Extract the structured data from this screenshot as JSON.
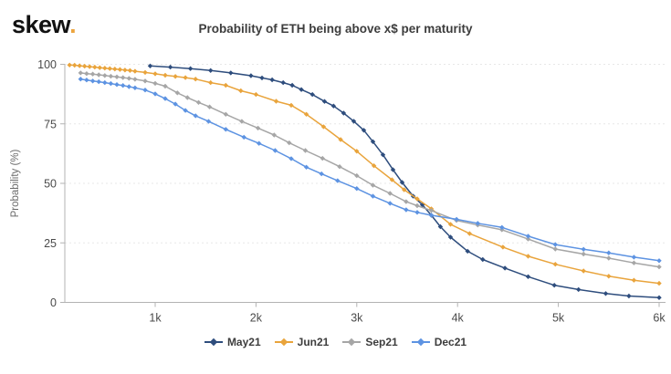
{
  "logo": {
    "text": "skew",
    "dot": "."
  },
  "title": "Probability of ETH being above x$ per maturity",
  "chart_data": {
    "type": "line",
    "title": "Probability of ETH being above x$ per maturity",
    "xlabel": "",
    "ylabel": "Probability (%)",
    "x_unit": "USD strike (thousands)",
    "xlim": [
      0.1,
      6.1
    ],
    "ylim": [
      0,
      100
    ],
    "x_ticks": [
      "1k",
      "2k",
      "3k",
      "4k",
      "5k",
      "6k"
    ],
    "x_tick_values": [
      1,
      2,
      3,
      4,
      5,
      6
    ],
    "y_ticks": [
      0,
      25,
      50,
      75,
      100
    ],
    "grid": "horizontal-dashed",
    "legend_position": "bottom-center",
    "axis_color": "#b3b3b3",
    "grid_color": "#e7e7e7",
    "series": [
      {
        "name": "May21",
        "color": "#2e4d7d",
        "points": [
          [
            0.95,
            99.3
          ],
          [
            1.15,
            98.8
          ],
          [
            1.35,
            98.2
          ],
          [
            1.55,
            97.4
          ],
          [
            1.75,
            96.4
          ],
          [
            1.95,
            95.2
          ],
          [
            2.06,
            94.3
          ],
          [
            2.16,
            93.5
          ],
          [
            2.27,
            92.3
          ],
          [
            2.36,
            91.2
          ],
          [
            2.45,
            89.4
          ],
          [
            2.56,
            87.3
          ],
          [
            2.68,
            84.4
          ],
          [
            2.77,
            82.5
          ],
          [
            2.87,
            79.5
          ],
          [
            2.97,
            76.1
          ],
          [
            3.07,
            72.3
          ],
          [
            3.16,
            67.5
          ],
          [
            3.26,
            62.0
          ],
          [
            3.36,
            55.7
          ],
          [
            3.45,
            50.4
          ],
          [
            3.56,
            44.6
          ],
          [
            3.65,
            41.0
          ],
          [
            3.74,
            36.6
          ],
          [
            3.83,
            31.8
          ],
          [
            3.93,
            27.4
          ],
          [
            4.1,
            21.5
          ],
          [
            4.25,
            18.0
          ],
          [
            4.47,
            14.4
          ],
          [
            4.7,
            10.8
          ],
          [
            4.96,
            7.2
          ],
          [
            5.2,
            5.4
          ],
          [
            5.47,
            3.7
          ],
          [
            5.7,
            2.7
          ],
          [
            6.0,
            2.0
          ]
        ]
      },
      {
        "name": "Jun21",
        "color": "#e9a43c",
        "points": [
          [
            0.15,
            99.7
          ],
          [
            0.2,
            99.6
          ],
          [
            0.25,
            99.4
          ],
          [
            0.3,
            99.2
          ],
          [
            0.35,
            99.0
          ],
          [
            0.4,
            98.8
          ],
          [
            0.45,
            98.6
          ],
          [
            0.5,
            98.4
          ],
          [
            0.55,
            98.2
          ],
          [
            0.6,
            98.0
          ],
          [
            0.65,
            97.8
          ],
          [
            0.7,
            97.6
          ],
          [
            0.75,
            97.4
          ],
          [
            0.8,
            97.1
          ],
          [
            0.9,
            96.6
          ],
          [
            1.0,
            96.0
          ],
          [
            1.1,
            95.4
          ],
          [
            1.2,
            94.9
          ],
          [
            1.3,
            94.4
          ],
          [
            1.4,
            93.8
          ],
          [
            1.55,
            92.3
          ],
          [
            1.7,
            91.2
          ],
          [
            1.85,
            88.9
          ],
          [
            2.0,
            87.3
          ],
          [
            2.2,
            84.5
          ],
          [
            2.35,
            82.8
          ],
          [
            2.5,
            79.0
          ],
          [
            2.67,
            73.8
          ],
          [
            2.84,
            68.4
          ],
          [
            3.0,
            63.5
          ],
          [
            3.17,
            57.4
          ],
          [
            3.35,
            51.5
          ],
          [
            3.47,
            47.3
          ],
          [
            3.6,
            43.5
          ],
          [
            3.74,
            39.3
          ],
          [
            3.93,
            32.8
          ],
          [
            4.12,
            28.9
          ],
          [
            4.45,
            23.2
          ],
          [
            4.7,
            19.4
          ],
          [
            4.97,
            16.0
          ],
          [
            5.25,
            13.2
          ],
          [
            5.5,
            11.0
          ],
          [
            5.75,
            9.3
          ],
          [
            6.0,
            8.0
          ]
        ]
      },
      {
        "name": "Sep21",
        "color": "#a6a6a6",
        "points": [
          [
            0.26,
            96.4
          ],
          [
            0.32,
            96.1
          ],
          [
            0.38,
            95.9
          ],
          [
            0.44,
            95.6
          ],
          [
            0.5,
            95.3
          ],
          [
            0.56,
            95.0
          ],
          [
            0.62,
            94.7
          ],
          [
            0.68,
            94.4
          ],
          [
            0.74,
            94.1
          ],
          [
            0.8,
            93.7
          ],
          [
            0.9,
            93.0
          ],
          [
            1.0,
            92.0
          ],
          [
            1.1,
            90.8
          ],
          [
            1.22,
            88.0
          ],
          [
            1.32,
            86.0
          ],
          [
            1.43,
            84.0
          ],
          [
            1.54,
            82.1
          ],
          [
            1.7,
            79.0
          ],
          [
            1.86,
            76.0
          ],
          [
            2.02,
            73.2
          ],
          [
            2.18,
            70.3
          ],
          [
            2.33,
            67.0
          ],
          [
            2.49,
            63.8
          ],
          [
            2.66,
            60.5
          ],
          [
            2.83,
            57.0
          ],
          [
            3.0,
            53.2
          ],
          [
            3.16,
            49.2
          ],
          [
            3.33,
            45.8
          ],
          [
            3.49,
            42.3
          ],
          [
            3.6,
            40.6
          ],
          [
            3.74,
            38.6
          ],
          [
            3.99,
            34.4
          ],
          [
            4.2,
            32.5
          ],
          [
            4.44,
            30.5
          ],
          [
            4.7,
            26.6
          ],
          [
            4.97,
            22.4
          ],
          [
            5.25,
            20.3
          ],
          [
            5.5,
            18.6
          ],
          [
            5.75,
            16.6
          ],
          [
            6.0,
            14.9
          ]
        ]
      },
      {
        "name": "Dec21",
        "color": "#5d93e2",
        "points": [
          [
            0.26,
            93.8
          ],
          [
            0.32,
            93.4
          ],
          [
            0.38,
            93.0
          ],
          [
            0.44,
            92.7
          ],
          [
            0.5,
            92.3
          ],
          [
            0.56,
            91.9
          ],
          [
            0.62,
            91.5
          ],
          [
            0.68,
            91.1
          ],
          [
            0.74,
            90.6
          ],
          [
            0.8,
            90.1
          ],
          [
            0.9,
            89.2
          ],
          [
            1.0,
            87.6
          ],
          [
            1.1,
            85.6
          ],
          [
            1.2,
            83.3
          ],
          [
            1.3,
            80.6
          ],
          [
            1.4,
            78.4
          ],
          [
            1.53,
            76.0
          ],
          [
            1.7,
            72.7
          ],
          [
            1.88,
            69.4
          ],
          [
            2.03,
            66.8
          ],
          [
            2.19,
            63.8
          ],
          [
            2.35,
            60.4
          ],
          [
            2.5,
            56.8
          ],
          [
            2.65,
            54.0
          ],
          [
            2.81,
            51.1
          ],
          [
            3.0,
            47.8
          ],
          [
            3.16,
            44.6
          ],
          [
            3.33,
            41.6
          ],
          [
            3.49,
            38.9
          ],
          [
            3.6,
            37.8
          ],
          [
            3.74,
            36.6
          ],
          [
            3.99,
            34.9
          ],
          [
            4.2,
            33.2
          ],
          [
            4.44,
            31.5
          ],
          [
            4.7,
            27.8
          ],
          [
            4.97,
            24.3
          ],
          [
            5.25,
            22.3
          ],
          [
            5.5,
            20.8
          ],
          [
            5.75,
            19.0
          ],
          [
            6.0,
            17.5
          ]
        ]
      }
    ]
  }
}
